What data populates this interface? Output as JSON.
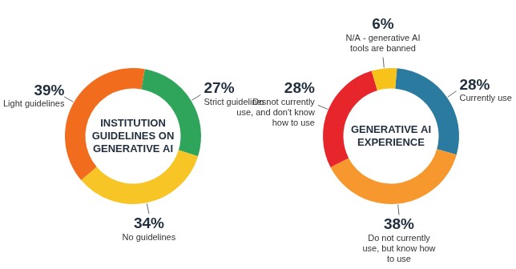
{
  "chart_data": [
    {
      "type": "doughnut",
      "title": "INSTITUTION GUIDELINES ON GENERATIVE AI",
      "categories": [
        "Strict guidelines",
        "No guidelines",
        "Light guidelines"
      ],
      "values": [
        27,
        34,
        39
      ],
      "value_labels": [
        "27%",
        "34%",
        "39%"
      ],
      "colors": [
        "#2ea55b",
        "#f7c525",
        "#f26c1d"
      ],
      "data_labels": true
    },
    {
      "type": "doughnut",
      "title": "GENERATIVE AI EXPERIENCE",
      "categories": [
        "Currently use",
        "Do not currently use, but know how to use",
        "Do not currently use, and don't know how to use",
        "N/A - generative AI tools are banned"
      ],
      "values": [
        28,
        38,
        28,
        6
      ],
      "value_labels": [
        "28%",
        "38%",
        "28%",
        "6%"
      ],
      "colors": [
        "#2b7a9f",
        "#f6982d",
        "#e7262b",
        "#f7c31a"
      ],
      "data_labels": true
    }
  ]
}
